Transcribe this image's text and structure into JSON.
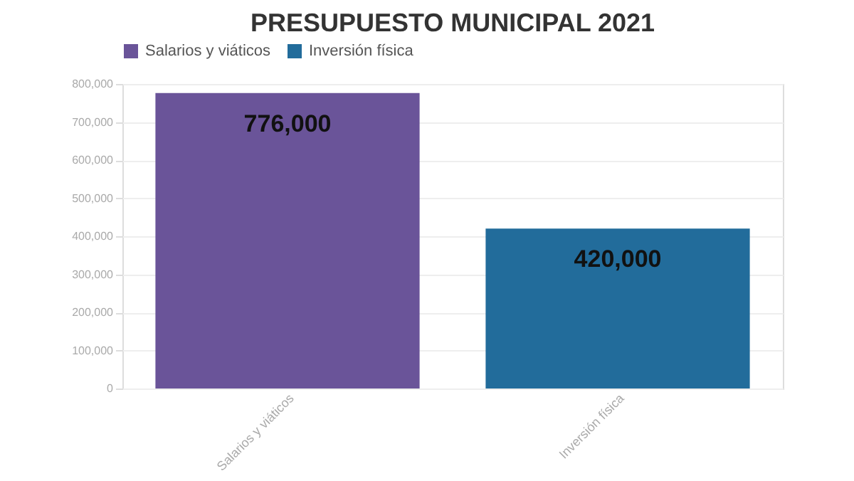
{
  "chart_data": {
    "type": "bar",
    "title": "PRESUPUESTO MUNICIPAL 2021",
    "categories": [
      "Salarios y viáticos",
      "Inversión física"
    ],
    "series": [
      {
        "name": "Salarios y viáticos",
        "color": "#6a5499",
        "values": [
          776000,
          null
        ],
        "value_labels": [
          "776,000",
          null
        ]
      },
      {
        "name": "Inversión física",
        "color": "#226c9b",
        "values": [
          null,
          420000
        ],
        "value_labels": [
          null,
          "420,000"
        ]
      }
    ],
    "ylim": [
      0,
      800000
    ],
    "yticks": [
      {
        "value": 0,
        "label": "0"
      },
      {
        "value": 100000,
        "label": "100,000"
      },
      {
        "value": 200000,
        "label": "200,000"
      },
      {
        "value": 300000,
        "label": "300,000"
      },
      {
        "value": 400000,
        "label": "400,000"
      },
      {
        "value": 500000,
        "label": "500,000"
      },
      {
        "value": 600000,
        "label": "600,000"
      },
      {
        "value": 700000,
        "label": "700,000"
      },
      {
        "value": 800000,
        "label": "800,000"
      }
    ],
    "grid": "y",
    "legend": "top"
  }
}
